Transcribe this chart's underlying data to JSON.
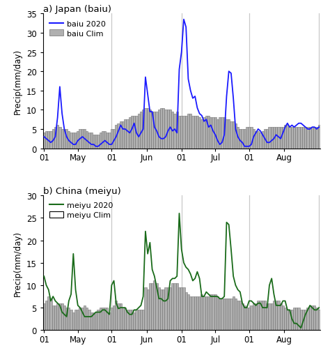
{
  "title_a": "a) Japan (baiu)",
  "title_b": "b) China (meiyu)",
  "ylabel": "Precip(mm/day)",
  "ylim_a": [
    0,
    35
  ],
  "ylim_b": [
    0,
    30
  ],
  "yticks_a": [
    0,
    5,
    10,
    15,
    20,
    25,
    30,
    35
  ],
  "yticks_b": [
    0,
    5,
    10,
    15,
    20,
    25,
    30
  ],
  "vline_positions": [
    30,
    61,
    91,
    122
  ],
  "n_days": 123,
  "legend_a_line": "baiu 2020",
  "legend_a_bar": "baiu Clim",
  "legend_b_line": "meiyu 2020",
  "legend_b_bar": "meiyu Clim",
  "line_color_a": "#1a1aff",
  "line_color_b": "#1a6b1a",
  "bar_facecolor_a": "#b0b0b0",
  "bar_facecolor_b": "#d8d8d8",
  "bar_edgecolor": "#707070",
  "vline_color": "#c8c8c8",
  "background": "#ffffff",
  "xtick_positions": [
    0,
    15,
    30,
    45.5,
    61,
    76,
    91,
    106.5
  ],
  "xtick_labels": [
    "01",
    "May",
    "01",
    "Jun",
    "01",
    "Jul",
    "01",
    "Aug"
  ],
  "baiu_2020": [
    3.0,
    2.5,
    2.0,
    1.5,
    2.0,
    3.0,
    8.0,
    16.0,
    9.0,
    5.0,
    3.0,
    2.0,
    1.5,
    1.0,
    1.0,
    2.0,
    2.5,
    3.0,
    2.5,
    2.0,
    1.5,
    1.0,
    1.0,
    0.5,
    0.5,
    1.0,
    1.5,
    2.0,
    1.5,
    1.0,
    1.0,
    2.0,
    3.0,
    4.5,
    6.0,
    5.0,
    5.0,
    4.5,
    4.0,
    5.0,
    6.5,
    4.0,
    3.0,
    4.0,
    5.0,
    18.5,
    14.0,
    9.5,
    9.5,
    5.5,
    4.5,
    3.0,
    2.5,
    2.5,
    3.0,
    4.5,
    5.5,
    4.5,
    5.0,
    4.0,
    20.5,
    25.0,
    33.5,
    31.5,
    18.0,
    15.0,
    13.0,
    13.5,
    10.5,
    9.0,
    8.5,
    7.0,
    7.5,
    5.5,
    6.0,
    4.5,
    3.5,
    2.0,
    1.0,
    1.5,
    3.5,
    13.5,
    20.0,
    19.5,
    13.0,
    5.0,
    3.0,
    2.0,
    1.5,
    0.5,
    0.5,
    0.5,
    1.0,
    3.0,
    4.0,
    5.0,
    4.5,
    3.5,
    2.5,
    1.5,
    1.5,
    2.0,
    2.5,
    3.5,
    3.0,
    2.5,
    4.0,
    5.5,
    6.5,
    5.5,
    6.0,
    5.5,
    6.0,
    6.5,
    6.5,
    6.0,
    5.5,
    5.0,
    5.0,
    5.5,
    5.5,
    5.0,
    5.5
  ],
  "baiu_clim": [
    4.0,
    4.5,
    4.5,
    4.5,
    5.0,
    5.5,
    6.0,
    5.5,
    5.0,
    5.0,
    5.0,
    4.5,
    4.0,
    4.0,
    4.0,
    4.5,
    5.0,
    5.0,
    5.0,
    4.5,
    4.0,
    4.0,
    3.5,
    3.5,
    3.5,
    4.0,
    4.5,
    4.5,
    4.0,
    4.0,
    5.0,
    5.0,
    6.0,
    6.5,
    7.0,
    7.0,
    7.5,
    7.5,
    8.0,
    8.5,
    8.5,
    8.5,
    9.0,
    9.5,
    10.0,
    10.5,
    10.5,
    10.0,
    9.5,
    9.5,
    9.5,
    10.0,
    10.5,
    10.5,
    10.0,
    10.0,
    10.0,
    9.5,
    9.0,
    9.5,
    8.5,
    8.5,
    8.5,
    8.5,
    9.0,
    9.0,
    8.5,
    8.5,
    8.5,
    8.0,
    7.5,
    8.0,
    8.5,
    8.5,
    8.0,
    8.0,
    8.0,
    7.5,
    8.0,
    8.0,
    8.0,
    7.5,
    7.5,
    7.0,
    7.0,
    6.5,
    5.5,
    5.0,
    5.0,
    5.0,
    5.5,
    5.5,
    5.5,
    5.0,
    4.5,
    4.5,
    4.0,
    4.5,
    5.0,
    5.0,
    5.5,
    5.5,
    5.5,
    5.5,
    5.5,
    5.5,
    5.5,
    6.0,
    6.0,
    5.5,
    5.5,
    5.5,
    5.5,
    5.5,
    5.5,
    5.5,
    5.5,
    5.5,
    5.5,
    5.5,
    5.5,
    5.5,
    6.0
  ],
  "meiyu_2020": [
    12.0,
    10.0,
    9.0,
    6.5,
    7.5,
    6.5,
    6.0,
    5.5,
    4.0,
    3.5,
    3.0,
    6.5,
    8.0,
    17.0,
    9.0,
    5.5,
    5.0,
    4.0,
    3.0,
    3.0,
    3.0,
    3.0,
    3.5,
    4.0,
    4.0,
    4.0,
    4.5,
    4.5,
    4.0,
    3.5,
    10.0,
    11.0,
    6.0,
    4.8,
    5.0,
    5.0,
    5.0,
    4.0,
    3.5,
    3.5,
    4.5,
    4.5,
    5.0,
    5.5,
    7.5,
    22.0,
    17.0,
    19.5,
    13.5,
    12.0,
    9.5,
    7.0,
    7.0,
    6.5,
    6.5,
    7.0,
    11.0,
    11.5,
    11.5,
    12.0,
    26.0,
    18.0,
    15.0,
    14.0,
    13.5,
    12.5,
    11.0,
    11.5,
    13.0,
    11.5,
    7.5,
    7.5,
    8.5,
    8.0,
    7.5,
    7.5,
    7.5,
    7.5,
    7.0,
    7.0,
    7.5,
    24.0,
    23.5,
    18.0,
    12.0,
    10.0,
    9.0,
    8.5,
    6.0,
    5.0,
    5.0,
    6.5,
    6.5,
    6.0,
    5.5,
    6.0,
    6.0,
    5.0,
    5.0,
    5.0,
    10.0,
    11.5,
    8.0,
    5.5,
    5.5,
    5.5,
    6.5,
    6.5,
    4.5,
    4.5,
    2.5,
    1.5,
    1.5,
    1.0,
    0.5,
    2.0,
    3.5,
    4.5,
    5.5,
    5.0,
    4.5,
    4.5,
    5.0
  ],
  "meiyu_clim": [
    6.0,
    6.5,
    7.5,
    7.0,
    5.5,
    5.5,
    6.0,
    6.0,
    6.0,
    5.5,
    5.0,
    5.0,
    4.5,
    4.0,
    4.5,
    4.5,
    5.0,
    5.0,
    5.5,
    5.0,
    4.5,
    4.0,
    4.0,
    4.0,
    4.5,
    5.0,
    5.0,
    5.0,
    5.0,
    4.0,
    5.0,
    5.5,
    6.5,
    6.0,
    6.0,
    5.0,
    5.0,
    4.5,
    4.5,
    4.5,
    4.0,
    4.5,
    4.5,
    4.5,
    4.5,
    9.5,
    9.0,
    10.5,
    10.5,
    11.0,
    10.5,
    9.5,
    9.0,
    9.0,
    9.5,
    9.5,
    9.5,
    10.5,
    10.5,
    10.5,
    9.5,
    9.5,
    9.5,
    8.5,
    8.0,
    7.5,
    7.5,
    7.5,
    7.5,
    7.5,
    8.0,
    7.5,
    7.5,
    7.5,
    8.0,
    8.0,
    8.0,
    7.5,
    7.0,
    7.0,
    7.0,
    7.0,
    7.0,
    7.0,
    7.5,
    7.0,
    6.5,
    6.5,
    6.0,
    5.5,
    5.0,
    5.0,
    5.5,
    6.0,
    6.0,
    6.5,
    6.5,
    6.5,
    6.5,
    6.0,
    6.0,
    6.0,
    6.5,
    6.5,
    6.5,
    6.0,
    5.5,
    5.0,
    4.5,
    4.5,
    4.5,
    5.0,
    5.0,
    5.0,
    4.5,
    4.5,
    4.5,
    5.0,
    5.5,
    5.5,
    5.5,
    5.0,
    4.5
  ]
}
